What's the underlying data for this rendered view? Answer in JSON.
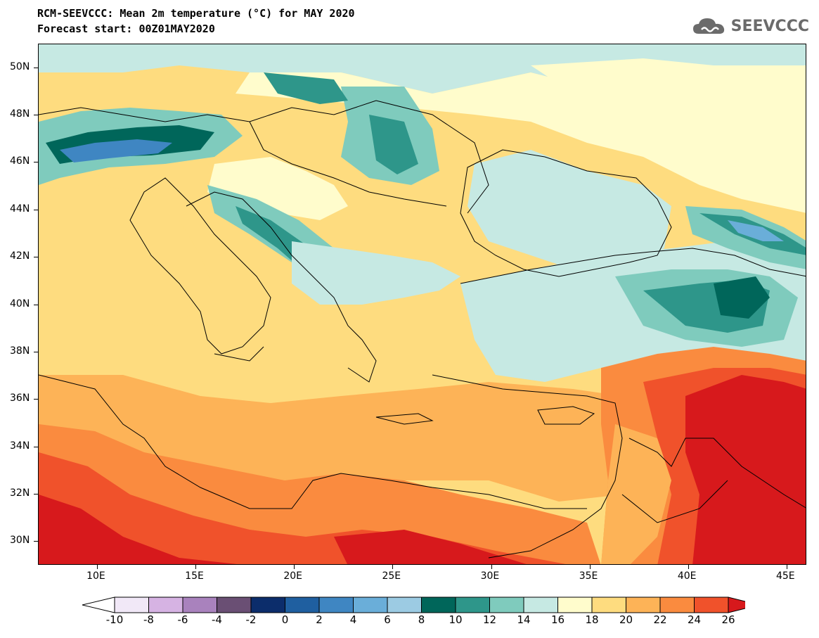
{
  "title": {
    "line1": "RCM-SEEVCCC: Mean 2m temperature (°C) for MAY 2020",
    "line2": "Forecast start: 00Z01MAY2020"
  },
  "logo": {
    "text": "SEEVCCC",
    "icon": "cloud-icon"
  },
  "map": {
    "lon_range": [
      7,
      46
    ],
    "lat_range": [
      29,
      51
    ],
    "lat_ticks": [
      {
        "value": 50,
        "label": "50N"
      },
      {
        "value": 48,
        "label": "48N"
      },
      {
        "value": 46,
        "label": "46N"
      },
      {
        "value": 44,
        "label": "44N"
      },
      {
        "value": 42,
        "label": "42N"
      },
      {
        "value": 40,
        "label": "40N"
      },
      {
        "value": 38,
        "label": "38N"
      },
      {
        "value": 36,
        "label": "36N"
      },
      {
        "value": 34,
        "label": "34N"
      },
      {
        "value": 32,
        "label": "32N"
      },
      {
        "value": 30,
        "label": "30N"
      }
    ],
    "lon_ticks": [
      {
        "value": 10,
        "label": "10E"
      },
      {
        "value": 15,
        "label": "15E"
      },
      {
        "value": 20,
        "label": "20E"
      },
      {
        "value": 25,
        "label": "25E"
      },
      {
        "value": 30,
        "label": "30E"
      },
      {
        "value": 35,
        "label": "35E"
      },
      {
        "value": 40,
        "label": "40E"
      },
      {
        "value": 45,
        "label": "45E"
      }
    ]
  },
  "colorbar": {
    "labels": [
      "-10",
      "-8",
      "-6",
      "-4",
      "-2",
      "0",
      "2",
      "4",
      "6",
      "8",
      "10",
      "12",
      "14",
      "16",
      "18",
      "20",
      "22",
      "24",
      "26"
    ],
    "colors": {
      "under": "#ffffff",
      "bins": [
        "#f1e8f7",
        "#d6b3e3",
        "#a982bd",
        "#6a4f74",
        "#0c2d6b",
        "#1f5fa0",
        "#3f86c2",
        "#6aaed9",
        "#9ccbe3",
        "#00665a",
        "#2e968a",
        "#7fcbbd",
        "#c6e9e3",
        "#fffccc",
        "#fedc7f",
        "#fdb357",
        "#fa8b3f",
        "#f0522b",
        "#d7191c"
      ]
    }
  }
}
